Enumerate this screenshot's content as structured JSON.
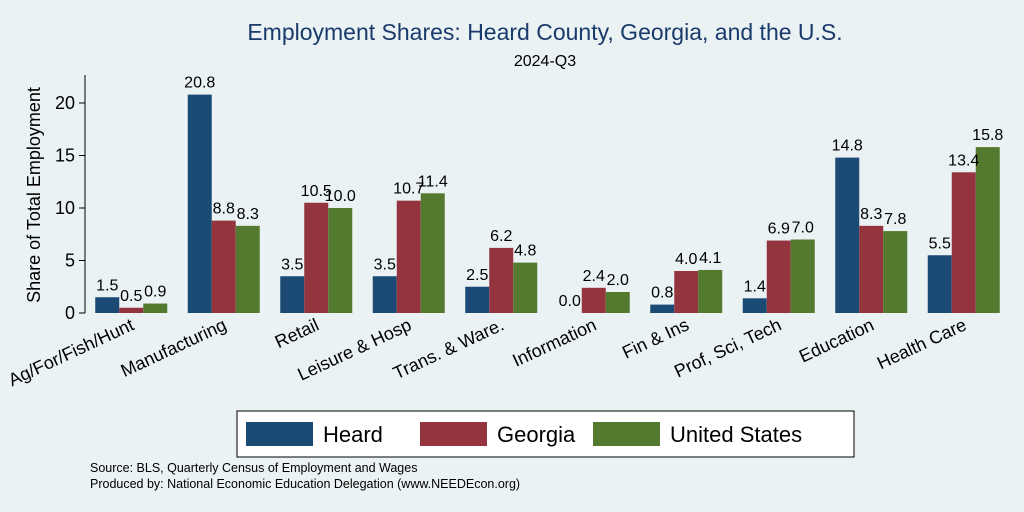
{
  "chart_data": {
    "type": "bar",
    "title": "Employment Shares: Heard County, Georgia, and the U.S.",
    "subtitle": "2024-Q3",
    "ylabel": "Share of Total Employment",
    "xlabel": "",
    "ylim": [
      0,
      22.5
    ],
    "yticks": [
      0,
      5,
      10,
      15,
      20
    ],
    "grid": false,
    "legend_position": "bottom",
    "categories": [
      "Ag/For/Fish/Hunt",
      "Manufacturing",
      "Retail",
      "Leisure & Hosp",
      "Trans. & Ware.",
      "Information",
      "Fin & Ins",
      "Prof, Sci, Tech",
      "Education",
      "Health Care"
    ],
    "series": [
      {
        "name": "Heard",
        "color": "#1b4a75",
        "values": [
          1.5,
          20.8,
          3.5,
          3.5,
          2.5,
          0.0,
          0.8,
          1.4,
          14.8,
          5.5
        ],
        "labels": [
          "1.5",
          "20.8",
          "3.5",
          "3.5",
          "2.5",
          "0.0",
          "0.8",
          "1.4",
          "14.8",
          "5.5"
        ]
      },
      {
        "name": "Georgia",
        "color": "#93343f",
        "values": [
          0.5,
          8.8,
          10.5,
          10.7,
          6.2,
          2.4,
          4.0,
          6.9,
          8.3,
          13.4
        ],
        "labels": [
          "0.5",
          "8.8",
          "10.5",
          "10.7",
          "6.2",
          "2.4",
          "4.0",
          "6.9",
          "8.3",
          "13.4"
        ]
      },
      {
        "name": "United States",
        "color": "#537a2f",
        "values": [
          0.9,
          8.3,
          10.0,
          11.4,
          4.8,
          2.0,
          4.1,
          7.0,
          7.8,
          15.8
        ],
        "labels": [
          "0.9",
          "8.3",
          "10.0",
          "11.4",
          "4.8",
          "2.0",
          "4.1",
          "7.0",
          "7.8",
          "15.8"
        ]
      }
    ]
  },
  "notes": {
    "source": "Source: BLS, Quarterly Census of Employment and Wages",
    "produced": "Produced by: National Economic Education Delegation (www.NEEDEcon.org)"
  }
}
